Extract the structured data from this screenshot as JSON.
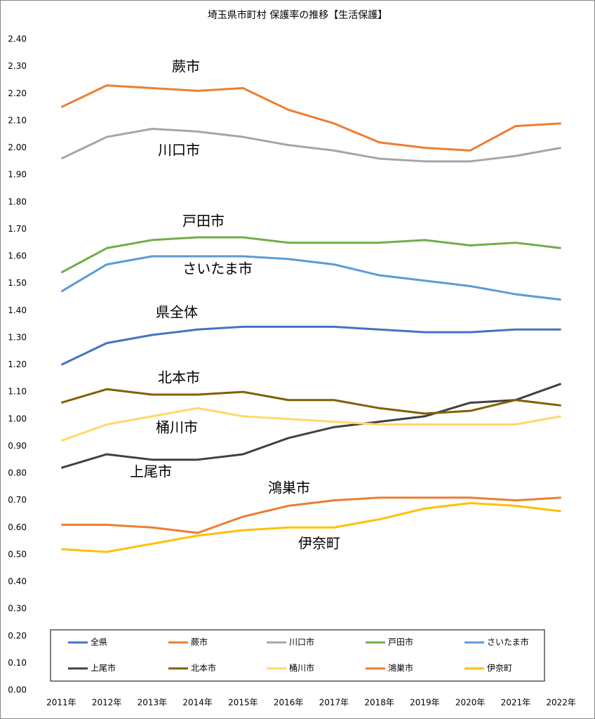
{
  "chart_data": {
    "type": "line",
    "title": "埼玉県市町村 保護率の推移【生活保護】",
    "categories": [
      "2011年",
      "2012年",
      "2013年",
      "2014年",
      "2015年",
      "2016年",
      "2017年",
      "2018年",
      "2019年",
      "2020年",
      "2021年",
      "2022年"
    ],
    "series": [
      {
        "name": "全県",
        "color": "#4472c4",
        "values": [
          1.2,
          1.28,
          1.31,
          1.33,
          1.34,
          1.34,
          1.34,
          1.33,
          1.32,
          1.32,
          1.33,
          1.33
        ]
      },
      {
        "name": "蕨市",
        "color": "#ed7d31",
        "values": [
          2.15,
          2.23,
          2.22,
          2.21,
          2.22,
          2.14,
          2.09,
          2.02,
          2.0,
          1.99,
          2.08,
          2.09
        ]
      },
      {
        "name": "川口市",
        "color": "#a5a5a5",
        "values": [
          1.96,
          2.04,
          2.07,
          2.06,
          2.04,
          2.01,
          1.99,
          1.96,
          1.95,
          1.95,
          1.97,
          2.0
        ]
      },
      {
        "name": "戸田市",
        "color": "#70ad47",
        "values": [
          1.54,
          1.63,
          1.66,
          1.67,
          1.67,
          1.65,
          1.65,
          1.65,
          1.66,
          1.64,
          1.65,
          1.63
        ]
      },
      {
        "name": "さいたま市",
        "color": "#5b9bd5",
        "values": [
          1.47,
          1.57,
          1.6,
          1.6,
          1.6,
          1.59,
          1.57,
          1.53,
          1.51,
          1.49,
          1.46,
          1.44
        ]
      },
      {
        "name": "上尾市",
        "color": "#404040",
        "values": [
          0.82,
          0.87,
          0.85,
          0.85,
          0.87,
          0.93,
          0.97,
          0.99,
          1.01,
          1.06,
          1.07,
          1.13
        ]
      },
      {
        "name": "北本市",
        "color": "#7f6000",
        "values": [
          1.06,
          1.11,
          1.09,
          1.09,
          1.1,
          1.07,
          1.07,
          1.04,
          1.02,
          1.03,
          1.07,
          1.05
        ]
      },
      {
        "name": "桶川市",
        "color": "#ffd966",
        "values": [
          0.92,
          0.98,
          1.01,
          1.04,
          1.01,
          1.0,
          0.99,
          0.98,
          0.98,
          0.98,
          0.98,
          1.01
        ]
      },
      {
        "name": "鴻巣市",
        "color": "#ed7d31",
        "values": [
          0.61,
          0.61,
          0.6,
          0.58,
          0.64,
          0.68,
          0.7,
          0.71,
          0.71,
          0.71,
          0.7,
          0.71
        ]
      },
      {
        "name": "伊奈町",
        "color": "#ffc000",
        "values": [
          0.52,
          0.51,
          0.54,
          0.57,
          0.59,
          0.6,
          0.6,
          0.63,
          0.67,
          0.69,
          0.68,
          0.66
        ]
      }
    ],
    "annotations": [
      "蕨市",
      "川口市",
      "戸田市",
      "さいたま市",
      "県全体",
      "北本市",
      "桶川市",
      "上尾市",
      "鴻巣市",
      "伊奈町"
    ],
    "ylim": [
      0,
      2.4
    ],
    "yticks": [
      {
        "value": 0,
        "label": "0.00"
      },
      {
        "value": 0.1,
        "label": "0.10"
      },
      {
        "value": 0.2,
        "label": "0.20"
      },
      {
        "value": 0.3,
        "label": "0.30"
      },
      {
        "value": 0.4,
        "label": "0.40"
      },
      {
        "value": 0.5,
        "label": "0.50"
      },
      {
        "value": 0.6,
        "label": "0.60"
      },
      {
        "value": 0.7,
        "label": "0.70"
      },
      {
        "value": 0.8,
        "label": "0.80"
      },
      {
        "value": 0.9,
        "label": "0.90"
      },
      {
        "value": 1.0,
        "label": "1.00"
      },
      {
        "value": 1.1,
        "label": "1.10"
      },
      {
        "value": 1.2,
        "label": "1.20"
      },
      {
        "value": 1.3,
        "label": "1.30"
      },
      {
        "value": 1.4,
        "label": "1.40"
      },
      {
        "value": 1.5,
        "label": "1.50"
      },
      {
        "value": 1.6,
        "label": "1.60"
      },
      {
        "value": 1.7,
        "label": "1.70"
      },
      {
        "value": 1.8,
        "label": "1.80"
      },
      {
        "value": 1.9,
        "label": "1.90"
      },
      {
        "value": 2.0,
        "label": "2.00"
      },
      {
        "value": 2.1,
        "label": "2.10"
      },
      {
        "value": 2.2,
        "label": "2.20"
      },
      {
        "value": 2.3,
        "label": "2.30"
      },
      {
        "value": 2.4,
        "label": "2.40"
      }
    ],
    "grid": false
  }
}
